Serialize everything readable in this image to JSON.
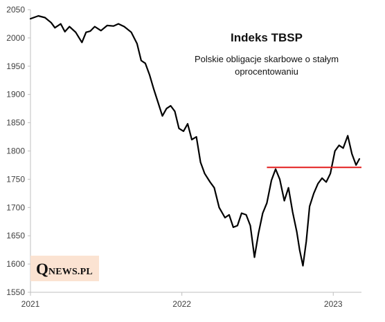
{
  "chart_data": {
    "type": "line",
    "title": "Indeks TBSP",
    "subtitle_lines": [
      "Polskie obligacje skarbowe o stałym",
      "oprocentowaniu"
    ],
    "xlabel": "",
    "ylabel": "",
    "x_ticks": [
      "2021",
      "2022",
      "2023"
    ],
    "y_ticks": [
      1550,
      1600,
      1650,
      1700,
      1750,
      1800,
      1850,
      1900,
      1950,
      2000,
      2050
    ],
    "ylim": [
      1550,
      2050
    ],
    "xlim": [
      "2021-01-01",
      "2023-03-10"
    ],
    "grid": false,
    "colors": {
      "series": "#000000",
      "reference_line": "#e31c1c"
    },
    "series": [
      {
        "values": [
          [
            "2021-01-01",
            2034
          ],
          [
            "2021-01-20",
            2039
          ],
          [
            "2021-02-05",
            2036
          ],
          [
            "2021-02-20",
            2027
          ],
          [
            "2021-03-01",
            2018
          ],
          [
            "2021-03-15",
            2025
          ],
          [
            "2021-03-25",
            2011
          ],
          [
            "2021-04-05",
            2020
          ],
          [
            "2021-04-20",
            2010
          ],
          [
            "2021-05-05",
            1992
          ],
          [
            "2021-05-15",
            2010
          ],
          [
            "2021-05-25",
            2012
          ],
          [
            "2021-06-05",
            2020
          ],
          [
            "2021-06-20",
            2013
          ],
          [
            "2021-07-05",
            2022
          ],
          [
            "2021-07-20",
            2021
          ],
          [
            "2021-08-01",
            2025
          ],
          [
            "2021-08-15",
            2020
          ],
          [
            "2021-09-01",
            2010
          ],
          [
            "2021-09-15",
            1990
          ],
          [
            "2021-09-25",
            1960
          ],
          [
            "2021-10-05",
            1955
          ],
          [
            "2021-10-15",
            1935
          ],
          [
            "2021-10-25",
            1910
          ],
          [
            "2021-11-05",
            1885
          ],
          [
            "2021-11-15",
            1862
          ],
          [
            "2021-11-25",
            1875
          ],
          [
            "2021-12-05",
            1880
          ],
          [
            "2021-12-15",
            1870
          ],
          [
            "2021-12-25",
            1840
          ],
          [
            "2022-01-05",
            1835
          ],
          [
            "2022-01-15",
            1848
          ],
          [
            "2022-01-25",
            1820
          ],
          [
            "2022-02-05",
            1825
          ],
          [
            "2022-02-15",
            1780
          ],
          [
            "2022-02-25",
            1760
          ],
          [
            "2022-03-10",
            1745
          ],
          [
            "2022-03-20",
            1735
          ],
          [
            "2022-04-01",
            1700
          ],
          [
            "2022-04-15",
            1682
          ],
          [
            "2022-04-25",
            1687
          ],
          [
            "2022-05-05",
            1665
          ],
          [
            "2022-05-15",
            1668
          ],
          [
            "2022-05-25",
            1690
          ],
          [
            "2022-06-05",
            1687
          ],
          [
            "2022-06-15",
            1668
          ],
          [
            "2022-06-25",
            1612
          ],
          [
            "2022-07-05",
            1655
          ],
          [
            "2022-07-15",
            1690
          ],
          [
            "2022-07-25",
            1708
          ],
          [
            "2022-08-05",
            1748
          ],
          [
            "2022-08-15",
            1768
          ],
          [
            "2022-08-25",
            1750
          ],
          [
            "2022-09-05",
            1712
          ],
          [
            "2022-09-15",
            1735
          ],
          [
            "2022-09-25",
            1692
          ],
          [
            "2022-10-05",
            1657
          ],
          [
            "2022-10-12",
            1625
          ],
          [
            "2022-10-20",
            1597
          ],
          [
            "2022-10-28",
            1640
          ],
          [
            "2022-11-05",
            1702
          ],
          [
            "2022-11-15",
            1725
          ],
          [
            "2022-11-25",
            1742
          ],
          [
            "2022-12-05",
            1752
          ],
          [
            "2022-12-15",
            1745
          ],
          [
            "2022-12-25",
            1760
          ],
          [
            "2023-01-05",
            1800
          ],
          [
            "2023-01-15",
            1810
          ],
          [
            "2023-01-25",
            1805
          ],
          [
            "2023-02-05",
            1827
          ],
          [
            "2023-02-15",
            1795
          ],
          [
            "2023-02-25",
            1775
          ],
          [
            "2023-03-05",
            1786
          ]
        ]
      }
    ],
    "reference_line": {
      "y": 1771,
      "x_start": "2022-07-25",
      "x_end": "2023-03-10"
    }
  },
  "logo": {
    "q": "Q",
    "rest": "NEWS.PL"
  }
}
